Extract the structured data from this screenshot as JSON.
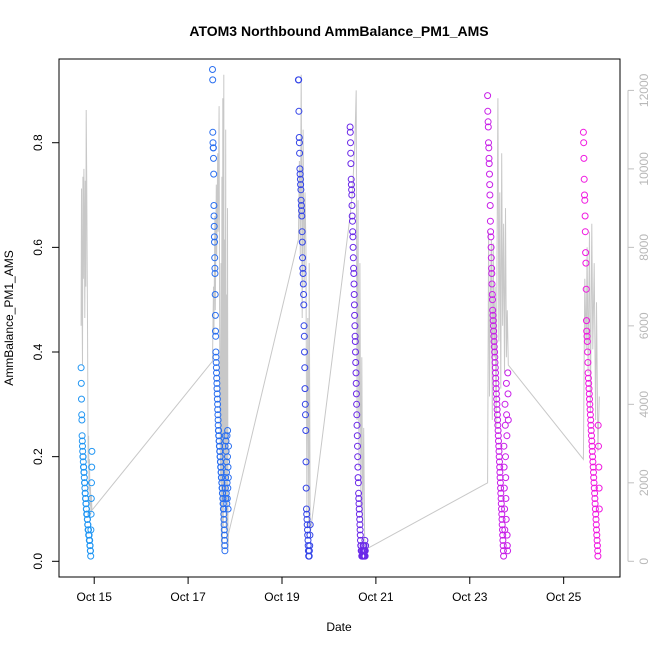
{
  "chart_data": {
    "type": "scatter",
    "title": "ATOM3 Northbound AmmBalance_PM1_AMS",
    "xlabel": "Date",
    "ylabel": "AmmBalance_PM1_AMS",
    "x_date_start": "2023-10-14",
    "xlim_days": [
      0.25,
      12.2
    ],
    "ylim": [
      -0.03,
      0.96
    ],
    "y2lim": [
      -400,
      12800
    ],
    "x_ticks": [
      {
        "day": 1,
        "label": "Oct 15"
      },
      {
        "day": 3,
        "label": "Oct 17"
      },
      {
        "day": 5,
        "label": "Oct 19"
      },
      {
        "day": 7,
        "label": "Oct 21"
      },
      {
        "day": 9,
        "label": "Oct 23"
      },
      {
        "day": 11,
        "label": "Oct 25"
      }
    ],
    "y_ticks": [
      {
        "value": 0.0,
        "label": "0.0"
      },
      {
        "value": 0.2,
        "label": "0.2"
      },
      {
        "value": 0.4,
        "label": "0.4"
      },
      {
        "value": 0.6,
        "label": "0.6"
      },
      {
        "value": 0.8,
        "label": "0.8"
      }
    ],
    "y2_ticks": [
      {
        "value": 0,
        "label": "0"
      },
      {
        "value": 2000,
        "label": "2000"
      },
      {
        "value": 4000,
        "label": "4000"
      },
      {
        "value": 6000,
        "label": "6000"
      },
      {
        "value": 8000,
        "label": "8000"
      },
      {
        "value": 10000,
        "label": "10000"
      },
      {
        "value": 12000,
        "label": "12000"
      }
    ],
    "colors": {
      "secondary_line": "#c8c8c8",
      "color_start": "#1e90ff",
      "color_end": "#ff00ff"
    },
    "series": [
      {
        "day_range": [
          0.72,
          0.95
        ],
        "color": "#2196f3",
        "values": [
          0.37,
          0.34,
          0.31,
          0.28,
          0.27,
          0.24,
          0.23,
          0.22,
          0.21,
          0.2,
          0.2,
          0.19,
          0.18,
          0.18,
          0.17,
          0.17,
          0.16,
          0.15,
          0.15,
          0.14,
          0.13,
          0.13,
          0.12,
          0.12,
          0.11,
          0.11,
          0.1,
          0.1,
          0.09,
          0.09,
          0.09,
          0.08,
          0.08,
          0.07,
          0.07,
          0.06,
          0.06,
          0.06,
          0.05,
          0.05,
          0.05,
          0.04,
          0.04,
          0.04,
          0.03,
          0.03,
          0.02,
          0.02,
          0.01,
          0.06,
          0.09,
          0.12,
          0.15,
          0.18,
          0.21
        ]
      },
      {
        "day_range": [
          3.52,
          3.86
        ],
        "color": "#2a6ff0",
        "values": [
          0.94,
          0.92,
          0.82,
          0.8,
          0.79,
          0.79,
          0.77,
          0.74,
          0.68,
          0.66,
          0.64,
          0.62,
          0.61,
          0.58,
          0.56,
          0.55,
          0.51,
          0.47,
          0.44,
          0.43,
          0.4,
          0.39,
          0.38,
          0.37,
          0.36,
          0.35,
          0.34,
          0.33,
          0.32,
          0.31,
          0.3,
          0.29,
          0.28,
          0.27,
          0.26,
          0.25,
          0.25,
          0.24,
          0.24,
          0.23,
          0.23,
          0.22,
          0.22,
          0.21,
          0.21,
          0.2,
          0.2,
          0.19,
          0.19,
          0.18,
          0.18,
          0.17,
          0.17,
          0.16,
          0.16,
          0.15,
          0.15,
          0.14,
          0.14,
          0.13,
          0.13,
          0.12,
          0.12,
          0.11,
          0.11,
          0.1,
          0.1,
          0.09,
          0.08,
          0.07,
          0.06,
          0.05,
          0.04,
          0.03,
          0.02,
          0.22,
          0.24,
          0.14,
          0.16,
          0.12,
          0.23,
          0.21,
          0.13,
          0.17,
          0.19,
          0.11,
          0.24,
          0.15,
          0.12,
          0.2,
          0.25,
          0.14,
          0.18,
          0.1,
          0.16,
          0.22
        ]
      },
      {
        "day_range": [
          5.35,
          5.6
        ],
        "color": "#3344e8",
        "values": [
          0.92,
          0.92,
          0.86,
          0.81,
          0.8,
          0.78,
          0.75,
          0.74,
          0.73,
          0.72,
          0.71,
          0.69,
          0.68,
          0.67,
          0.66,
          0.63,
          0.61,
          0.58,
          0.56,
          0.55,
          0.53,
          0.51,
          0.49,
          0.45,
          0.43,
          0.4,
          0.37,
          0.33,
          0.3,
          0.28,
          0.25,
          0.19,
          0.14,
          0.1,
          0.09,
          0.08,
          0.07,
          0.06,
          0.05,
          0.04,
          0.03,
          0.02,
          0.01,
          0.01,
          0.01,
          0.02,
          0.03,
          0.05,
          0.07
        ]
      },
      {
        "day_range": [
          6.45,
          6.78
        ],
        "color": "#6a28e8",
        "values": [
          0.83,
          0.82,
          0.8,
          0.78,
          0.76,
          0.73,
          0.72,
          0.71,
          0.7,
          0.68,
          0.66,
          0.65,
          0.63,
          0.62,
          0.6,
          0.58,
          0.56,
          0.55,
          0.53,
          0.51,
          0.49,
          0.47,
          0.45,
          0.43,
          0.42,
          0.4,
          0.38,
          0.36,
          0.34,
          0.32,
          0.3,
          0.28,
          0.26,
          0.24,
          0.22,
          0.2,
          0.18,
          0.16,
          0.15,
          0.13,
          0.12,
          0.11,
          0.1,
          0.09,
          0.08,
          0.07,
          0.06,
          0.05,
          0.04,
          0.03,
          0.03,
          0.02,
          0.02,
          0.02,
          0.01,
          0.01,
          0.01,
          0.01,
          0.02,
          0.02,
          0.03,
          0.01,
          0.02,
          0.01,
          0.03,
          0.02,
          0.01,
          0.02,
          0.04,
          0.01,
          0.02,
          0.03
        ]
      },
      {
        "day_range": [
          9.38,
          9.82
        ],
        "color": "#c81ee8",
        "values": [
          0.89,
          0.86,
          0.84,
          0.83,
          0.8,
          0.79,
          0.77,
          0.76,
          0.74,
          0.72,
          0.7,
          0.68,
          0.65,
          0.63,
          0.62,
          0.6,
          0.58,
          0.56,
          0.55,
          0.53,
          0.51,
          0.5,
          0.48,
          0.47,
          0.46,
          0.45,
          0.44,
          0.43,
          0.42,
          0.41,
          0.4,
          0.39,
          0.38,
          0.37,
          0.36,
          0.35,
          0.34,
          0.33,
          0.32,
          0.31,
          0.3,
          0.29,
          0.28,
          0.27,
          0.26,
          0.25,
          0.24,
          0.23,
          0.22,
          0.21,
          0.2,
          0.19,
          0.18,
          0.17,
          0.16,
          0.15,
          0.14,
          0.13,
          0.12,
          0.11,
          0.1,
          0.09,
          0.08,
          0.07,
          0.06,
          0.05,
          0.04,
          0.03,
          0.02,
          0.01,
          0.22,
          0.18,
          0.14,
          0.1,
          0.06,
          0.3,
          0.26,
          0.2,
          0.16,
          0.12,
          0.08,
          0.34,
          0.28,
          0.24,
          0.05,
          0.03,
          0.02,
          0.36,
          0.32,
          0.27
        ]
      },
      {
        "day_range": [
          11.42,
          11.76
        ],
        "color": "#f018e0",
        "values": [
          0.82,
          0.8,
          0.77,
          0.73,
          0.7,
          0.69,
          0.66,
          0.63,
          0.59,
          0.57,
          0.52,
          0.46,
          0.44,
          0.43,
          0.42,
          0.4,
          0.38,
          0.36,
          0.35,
          0.34,
          0.33,
          0.32,
          0.31,
          0.3,
          0.29,
          0.28,
          0.27,
          0.26,
          0.25,
          0.24,
          0.23,
          0.22,
          0.21,
          0.2,
          0.19,
          0.18,
          0.17,
          0.16,
          0.15,
          0.14,
          0.13,
          0.12,
          0.11,
          0.1,
          0.09,
          0.08,
          0.07,
          0.06,
          0.05,
          0.04,
          0.03,
          0.02,
          0.01,
          0.26,
          0.22,
          0.18,
          0.14,
          0.1
        ]
      }
    ],
    "secondary_line": {
      "type": "line",
      "points": [
        [
          0.72,
          6000
        ],
        [
          0.73,
          9500
        ],
        [
          0.74,
          6800
        ],
        [
          0.75,
          5000
        ],
        [
          0.76,
          9800
        ],
        [
          0.77,
          7200
        ],
        [
          0.78,
          10000
        ],
        [
          0.79,
          8400
        ],
        [
          0.8,
          6200
        ],
        [
          0.81,
          9700
        ],
        [
          0.82,
          7000
        ],
        [
          0.83,
          11500
        ],
        [
          0.84,
          9800
        ],
        [
          0.85,
          7400
        ],
        [
          0.86,
          5600
        ],
        [
          0.87,
          2500
        ],
        [
          0.88,
          3200
        ],
        [
          0.89,
          1800
        ],
        [
          0.9,
          2600
        ],
        [
          0.91,
          1400
        ],
        [
          0.92,
          1900
        ],
        [
          0.93,
          1200
        ],
        [
          0.94,
          1700
        ],
        [
          0.95,
          1300
        ],
        [
          3.52,
          5100
        ],
        [
          3.54,
          7000
        ],
        [
          3.55,
          5800
        ],
        [
          3.57,
          8800
        ],
        [
          3.58,
          6400
        ],
        [
          3.6,
          9600
        ],
        [
          3.61,
          7800
        ],
        [
          3.63,
          10400
        ],
        [
          3.64,
          8400
        ],
        [
          3.66,
          11600
        ],
        [
          3.67,
          6000
        ],
        [
          3.69,
          2000
        ],
        [
          3.7,
          7600
        ],
        [
          3.71,
          300
        ],
        [
          3.72,
          9800
        ],
        [
          3.73,
          500
        ],
        [
          3.74,
          11800
        ],
        [
          3.75,
          900
        ],
        [
          3.76,
          12400
        ],
        [
          3.77,
          1500
        ],
        [
          3.78,
          8200
        ],
        [
          3.79,
          2200
        ],
        [
          3.8,
          11000
        ],
        [
          3.81,
          800
        ],
        [
          3.82,
          6800
        ],
        [
          3.83,
          400
        ],
        [
          3.84,
          9000
        ],
        [
          3.85,
          300
        ],
        [
          3.86,
          700
        ],
        [
          5.35,
          8200
        ],
        [
          5.37,
          10200
        ],
        [
          5.39,
          7800
        ],
        [
          5.41,
          12400
        ],
        [
          5.43,
          6200
        ],
        [
          5.45,
          11000
        ],
        [
          5.47,
          7000
        ],
        [
          5.49,
          9400
        ],
        [
          5.51,
          8100
        ],
        [
          5.52,
          4600
        ],
        [
          5.53,
          1200
        ],
        [
          5.55,
          6200
        ],
        [
          5.57,
          900
        ],
        [
          5.58,
          7600
        ],
        [
          5.6,
          700
        ],
        [
          6.45,
          8800
        ],
        [
          6.5,
          9400
        ],
        [
          6.55,
          10600
        ],
        [
          6.58,
          12000
        ],
        [
          6.6,
          3600
        ],
        [
          6.62,
          9200
        ],
        [
          6.64,
          2400
        ],
        [
          6.66,
          7600
        ],
        [
          6.68,
          1400
        ],
        [
          6.7,
          5200
        ],
        [
          6.72,
          900
        ],
        [
          6.74,
          3400
        ],
        [
          6.76,
          600
        ],
        [
          6.78,
          300
        ],
        [
          9.38,
          2000
        ],
        [
          9.4,
          8400
        ],
        [
          9.42,
          4200
        ],
        [
          9.44,
          6800
        ],
        [
          9.46,
          8200
        ],
        [
          9.48,
          3600
        ],
        [
          9.5,
          8100
        ],
        [
          9.52,
          5200
        ],
        [
          9.54,
          7000
        ],
        [
          9.56,
          3400
        ],
        [
          9.58,
          7600
        ],
        [
          9.6,
          11800
        ],
        [
          9.62,
          5600
        ],
        [
          9.64,
          9400
        ],
        [
          9.66,
          4400
        ],
        [
          9.68,
          10400
        ],
        [
          9.7,
          6000
        ],
        [
          9.72,
          8600
        ],
        [
          9.74,
          4800
        ],
        [
          9.76,
          9000
        ],
        [
          9.78,
          5200
        ],
        [
          9.8,
          6400
        ],
        [
          9.82,
          5000
        ],
        [
          11.42,
          2600
        ],
        [
          11.45,
          7200
        ],
        [
          11.48,
          5400
        ],
        [
          11.5,
          8000
        ],
        [
          11.52,
          4800
        ],
        [
          11.55,
          8400
        ],
        [
          11.57,
          3800
        ],
        [
          11.6,
          8600
        ],
        [
          11.62,
          5400
        ],
        [
          11.65,
          7600
        ],
        [
          11.68,
          3600
        ],
        [
          11.7,
          6600
        ],
        [
          11.73,
          2800
        ],
        [
          11.76,
          4200
        ]
      ]
    }
  }
}
